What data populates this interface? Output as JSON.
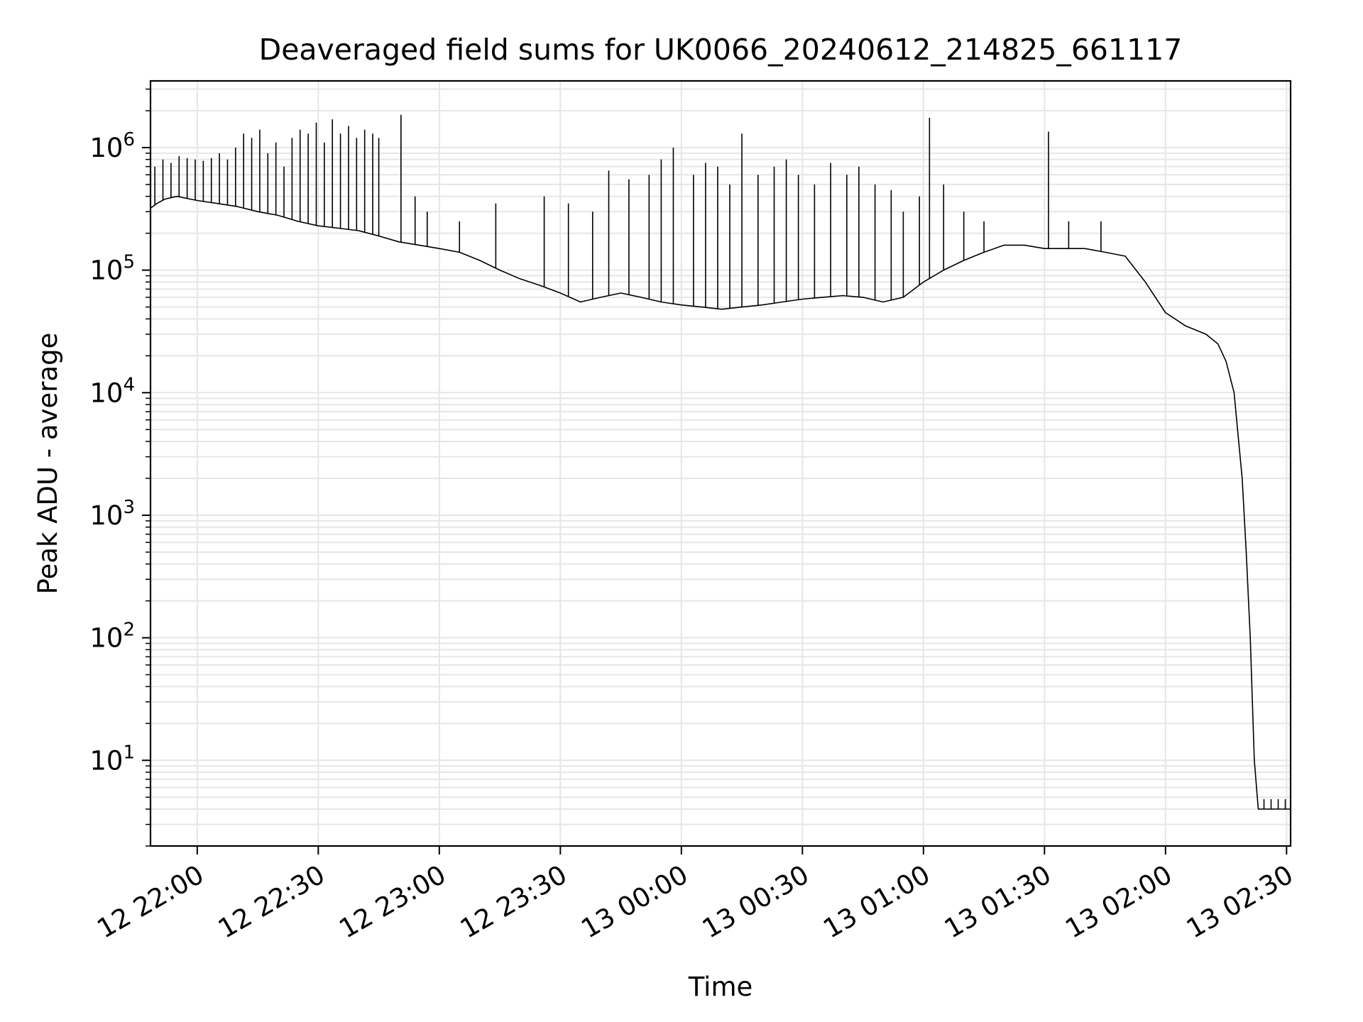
{
  "chart_data": {
    "type": "line",
    "title": "Deaveraged field sums for UK0066_20240612_214825_661117",
    "xlabel": "Time",
    "ylabel": "Peak ADU - average",
    "x_type": "time",
    "xlim": [
      "2024-06-12T21:48:25",
      "2024-06-13T02:31:00"
    ],
    "ylim": [
      2,
      3500000
    ],
    "y_scale": "log",
    "grid": true,
    "legend": "none",
    "line_color": "#000000",
    "grid_color": "#e6e6e6",
    "x_ticks": [
      {
        "value": "2024-06-12T22:00:00",
        "label": "12 22:00"
      },
      {
        "value": "2024-06-12T22:30:00",
        "label": "12 22:30"
      },
      {
        "value": "2024-06-12T23:00:00",
        "label": "12 23:00"
      },
      {
        "value": "2024-06-12T23:30:00",
        "label": "12 23:30"
      },
      {
        "value": "2024-06-13T00:00:00",
        "label": "13 00:00"
      },
      {
        "value": "2024-06-13T00:30:00",
        "label": "13 00:30"
      },
      {
        "value": "2024-06-13T01:00:00",
        "label": "13 01:00"
      },
      {
        "value": "2024-06-13T01:30:00",
        "label": "13 01:30"
      },
      {
        "value": "2024-06-13T02:00:00",
        "label": "13 02:00"
      },
      {
        "value": "2024-06-13T02:30:00",
        "label": "13 02:30"
      }
    ],
    "y_ticks": [
      {
        "value": 10,
        "base": "10",
        "exp": "1"
      },
      {
        "value": 100,
        "base": "10",
        "exp": "2"
      },
      {
        "value": 1000,
        "base": "10",
        "exp": "3"
      },
      {
        "value": 10000,
        "base": "10",
        "exp": "4"
      },
      {
        "value": 100000,
        "base": "10",
        "exp": "5"
      },
      {
        "value": 1000000,
        "base": "10",
        "exp": "6"
      }
    ],
    "series": [
      {
        "x": [
          "2024-06-12T21:48:25",
          "2024-06-12T21:50:00",
          "2024-06-12T21:52:00",
          "2024-06-12T21:55:00",
          "2024-06-12T22:00:00",
          "2024-06-12T22:05:00",
          "2024-06-12T22:10:00",
          "2024-06-12T22:15:00",
          "2024-06-12T22:20:00",
          "2024-06-12T22:25:00",
          "2024-06-12T22:30:00",
          "2024-06-12T22:35:00",
          "2024-06-12T22:40:00",
          "2024-06-12T22:45:00",
          "2024-06-12T22:50:00",
          "2024-06-12T22:55:00",
          "2024-06-12T23:00:00",
          "2024-06-12T23:05:00",
          "2024-06-12T23:10:00",
          "2024-06-12T23:15:00",
          "2024-06-12T23:20:00",
          "2024-06-12T23:25:00",
          "2024-06-12T23:30:00",
          "2024-06-12T23:35:00",
          "2024-06-12T23:40:00",
          "2024-06-12T23:45:00",
          "2024-06-12T23:50:00",
          "2024-06-12T23:55:00",
          "2024-06-13T00:00:00",
          "2024-06-13T00:05:00",
          "2024-06-13T00:10:00",
          "2024-06-13T00:15:00",
          "2024-06-13T00:20:00",
          "2024-06-13T00:25:00",
          "2024-06-13T00:30:00",
          "2024-06-13T00:35:00",
          "2024-06-13T00:40:00",
          "2024-06-13T00:45:00",
          "2024-06-13T00:50:00",
          "2024-06-13T00:55:00",
          "2024-06-13T01:00:00",
          "2024-06-13T01:05:00",
          "2024-06-13T01:10:00",
          "2024-06-13T01:15:00",
          "2024-06-13T01:20:00",
          "2024-06-13T01:25:00",
          "2024-06-13T01:30:00",
          "2024-06-13T01:35:00",
          "2024-06-13T01:40:00",
          "2024-06-13T01:45:00",
          "2024-06-13T01:50:00",
          "2024-06-13T01:55:00",
          "2024-06-13T02:00:00",
          "2024-06-13T02:05:00",
          "2024-06-13T02:10:00",
          "2024-06-13T02:13:00",
          "2024-06-13T02:15:00",
          "2024-06-13T02:17:00",
          "2024-06-13T02:19:00",
          "2024-06-13T02:20:00",
          "2024-06-13T02:21:00",
          "2024-06-13T02:22:00",
          "2024-06-13T02:23:00",
          "2024-06-13T02:24:00",
          "2024-06-13T02:26:00",
          "2024-06-13T02:28:00",
          "2024-06-13T02:31:00"
        ],
        "y": [
          320000,
          350000,
          380000,
          400000,
          370000,
          350000,
          330000,
          300000,
          280000,
          250000,
          230000,
          220000,
          210000,
          190000,
          170000,
          160000,
          150000,
          140000,
          120000,
          100000,
          85000,
          75000,
          65000,
          55000,
          60000,
          65000,
          60000,
          55000,
          52000,
          50000,
          48000,
          50000,
          52000,
          55000,
          58000,
          60000,
          62000,
          60000,
          55000,
          60000,
          80000,
          100000,
          120000,
          140000,
          160000,
          160000,
          150000,
          150000,
          150000,
          140000,
          130000,
          80000,
          45000,
          35000,
          30000,
          25000,
          18000,
          10000,
          2000,
          500,
          100,
          10,
          4,
          4,
          4,
          4,
          4
        ]
      }
    ],
    "spikes": [
      {
        "x": "2024-06-12T21:49:30",
        "y": 700000
      },
      {
        "x": "2024-06-12T21:51:30",
        "y": 800000
      },
      {
        "x": "2024-06-12T21:53:30",
        "y": 750000
      },
      {
        "x": "2024-06-12T21:55:30",
        "y": 850000
      },
      {
        "x": "2024-06-12T21:57:30",
        "y": 820000
      },
      {
        "x": "2024-06-12T21:59:30",
        "y": 800000
      },
      {
        "x": "2024-06-12T22:01:30",
        "y": 780000
      },
      {
        "x": "2024-06-12T22:03:30",
        "y": 820000
      },
      {
        "x": "2024-06-12T22:05:30",
        "y": 900000
      },
      {
        "x": "2024-06-12T22:07:30",
        "y": 800000
      },
      {
        "x": "2024-06-12T22:09:30",
        "y": 1000000
      },
      {
        "x": "2024-06-12T22:11:30",
        "y": 1300000
      },
      {
        "x": "2024-06-12T22:13:30",
        "y": 1200000
      },
      {
        "x": "2024-06-12T22:15:30",
        "y": 1400000
      },
      {
        "x": "2024-06-12T22:17:30",
        "y": 900000
      },
      {
        "x": "2024-06-12T22:19:30",
        "y": 1100000
      },
      {
        "x": "2024-06-12T22:21:30",
        "y": 700000
      },
      {
        "x": "2024-06-12T22:23:30",
        "y": 1200000
      },
      {
        "x": "2024-06-12T22:25:30",
        "y": 1400000
      },
      {
        "x": "2024-06-12T22:27:30",
        "y": 1300000
      },
      {
        "x": "2024-06-12T22:29:30",
        "y": 1600000
      },
      {
        "x": "2024-06-12T22:31:30",
        "y": 1100000
      },
      {
        "x": "2024-06-12T22:33:30",
        "y": 1700000
      },
      {
        "x": "2024-06-12T22:35:30",
        "y": 1300000
      },
      {
        "x": "2024-06-12T22:37:30",
        "y": 1500000
      },
      {
        "x": "2024-06-12T22:39:30",
        "y": 1200000
      },
      {
        "x": "2024-06-12T22:41:30",
        "y": 1400000
      },
      {
        "x": "2024-06-12T22:43:30",
        "y": 1300000
      },
      {
        "x": "2024-06-12T22:45:00",
        "y": 1200000
      },
      {
        "x": "2024-06-12T22:50:30",
        "y": 1850000
      },
      {
        "x": "2024-06-12T22:54:00",
        "y": 400000
      },
      {
        "x": "2024-06-12T22:57:00",
        "y": 300000
      },
      {
        "x": "2024-06-12T23:05:00",
        "y": 250000
      },
      {
        "x": "2024-06-12T23:14:00",
        "y": 350000
      },
      {
        "x": "2024-06-12T23:26:00",
        "y": 400000
      },
      {
        "x": "2024-06-12T23:32:00",
        "y": 350000
      },
      {
        "x": "2024-06-12T23:38:00",
        "y": 300000
      },
      {
        "x": "2024-06-12T23:42:00",
        "y": 650000
      },
      {
        "x": "2024-06-12T23:47:00",
        "y": 550000
      },
      {
        "x": "2024-06-12T23:52:00",
        "y": 600000
      },
      {
        "x": "2024-06-12T23:55:00",
        "y": 800000
      },
      {
        "x": "2024-06-12T23:58:00",
        "y": 1000000
      },
      {
        "x": "2024-06-13T00:03:00",
        "y": 600000
      },
      {
        "x": "2024-06-13T00:06:00",
        "y": 750000
      },
      {
        "x": "2024-06-13T00:09:00",
        "y": 700000
      },
      {
        "x": "2024-06-13T00:12:00",
        "y": 500000
      },
      {
        "x": "2024-06-13T00:15:00",
        "y": 1300000
      },
      {
        "x": "2024-06-13T00:19:00",
        "y": 600000
      },
      {
        "x": "2024-06-13T00:23:00",
        "y": 700000
      },
      {
        "x": "2024-06-13T00:26:00",
        "y": 800000
      },
      {
        "x": "2024-06-13T00:29:00",
        "y": 600000
      },
      {
        "x": "2024-06-13T00:33:00",
        "y": 500000
      },
      {
        "x": "2024-06-13T00:37:00",
        "y": 750000
      },
      {
        "x": "2024-06-13T00:41:00",
        "y": 600000
      },
      {
        "x": "2024-06-13T00:44:00",
        "y": 700000
      },
      {
        "x": "2024-06-13T00:48:00",
        "y": 500000
      },
      {
        "x": "2024-06-13T00:52:00",
        "y": 450000
      },
      {
        "x": "2024-06-13T00:55:00",
        "y": 300000
      },
      {
        "x": "2024-06-13T00:59:00",
        "y": 400000
      },
      {
        "x": "2024-06-13T01:01:30",
        "y": 1750000
      },
      {
        "x": "2024-06-13T01:05:00",
        "y": 500000
      },
      {
        "x": "2024-06-13T01:10:00",
        "y": 300000
      },
      {
        "x": "2024-06-13T01:15:00",
        "y": 250000
      },
      {
        "x": "2024-06-13T01:31:00",
        "y": 1350000
      },
      {
        "x": "2024-06-13T01:36:00",
        "y": 250000
      },
      {
        "x": "2024-06-13T01:44:00",
        "y": 250000
      }
    ]
  }
}
